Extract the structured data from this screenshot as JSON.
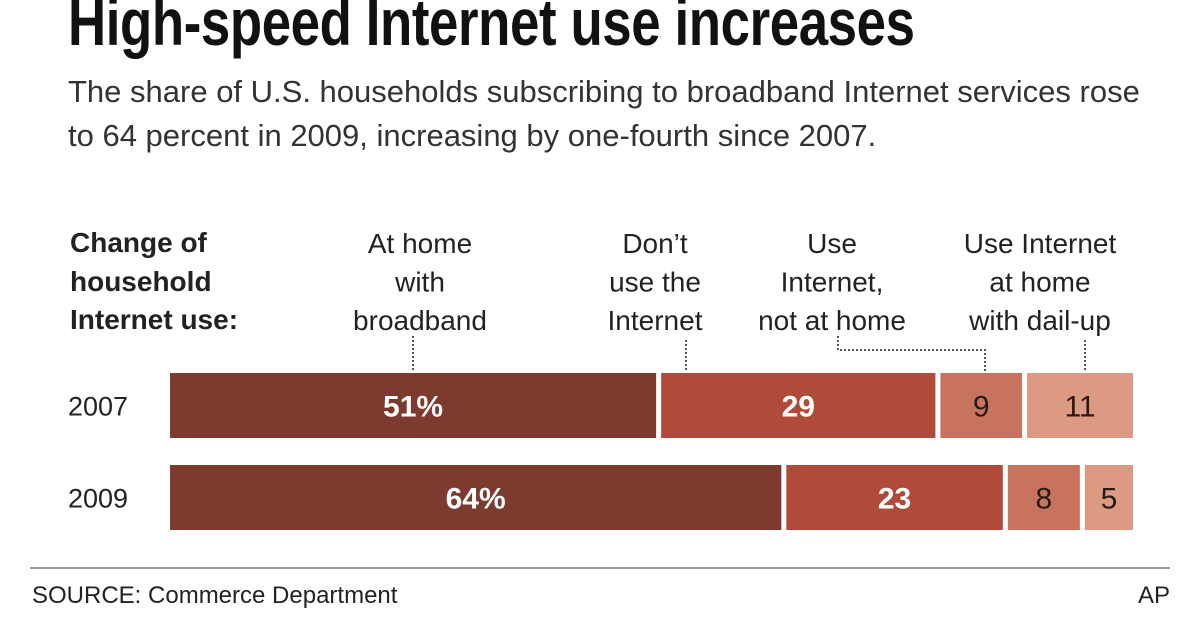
{
  "chart_data": {
    "type": "bar",
    "orientation": "horizontal",
    "stacked": true,
    "title": "High-speed Internet use increases",
    "subtitle": "The share of U.S. households subscribing to broadband Internet services rose to 64 percent in 2009, increasing by one-fourth since 2007.",
    "row_header": "Change of household Internet use:",
    "categories": [
      "2007",
      "2009"
    ],
    "series": [
      {
        "name": "At home with broadband",
        "values": [
          51,
          64
        ],
        "labels": [
          "51%",
          "64%"
        ],
        "color": "#7d3a2e",
        "label_color": "#ffffff"
      },
      {
        "name": "Don’t use the Internet",
        "values": [
          29,
          23
        ],
        "labels": [
          "29",
          "23"
        ],
        "color": "#b04a3a",
        "label_color": "#ffffff"
      },
      {
        "name": "Use Internet, not at home",
        "values": [
          9,
          8
        ],
        "labels": [
          "9",
          "8"
        ],
        "color": "#c8735e",
        "label_color": "#2a1a14"
      },
      {
        "name": "Use Internet at home with dail-up",
        "values": [
          11,
          5
        ],
        "labels": [
          "11",
          "5"
        ],
        "color": "#dc9a82",
        "label_color": "#2a1a14"
      }
    ],
    "series_header_lines": [
      [
        "At home",
        "with",
        "broadband"
      ],
      [
        "Don’t",
        "use the",
        "Internet"
      ],
      [
        "Use",
        "Internet,",
        "not at home"
      ],
      [
        "Use Internet",
        "at home",
        "with dail-up"
      ]
    ],
    "xlim": [
      0,
      100
    ],
    "grid": false,
    "legend": "top (column headers with leader lines)"
  },
  "source": "SOURCE: Commerce Department",
  "credit": "AP"
}
